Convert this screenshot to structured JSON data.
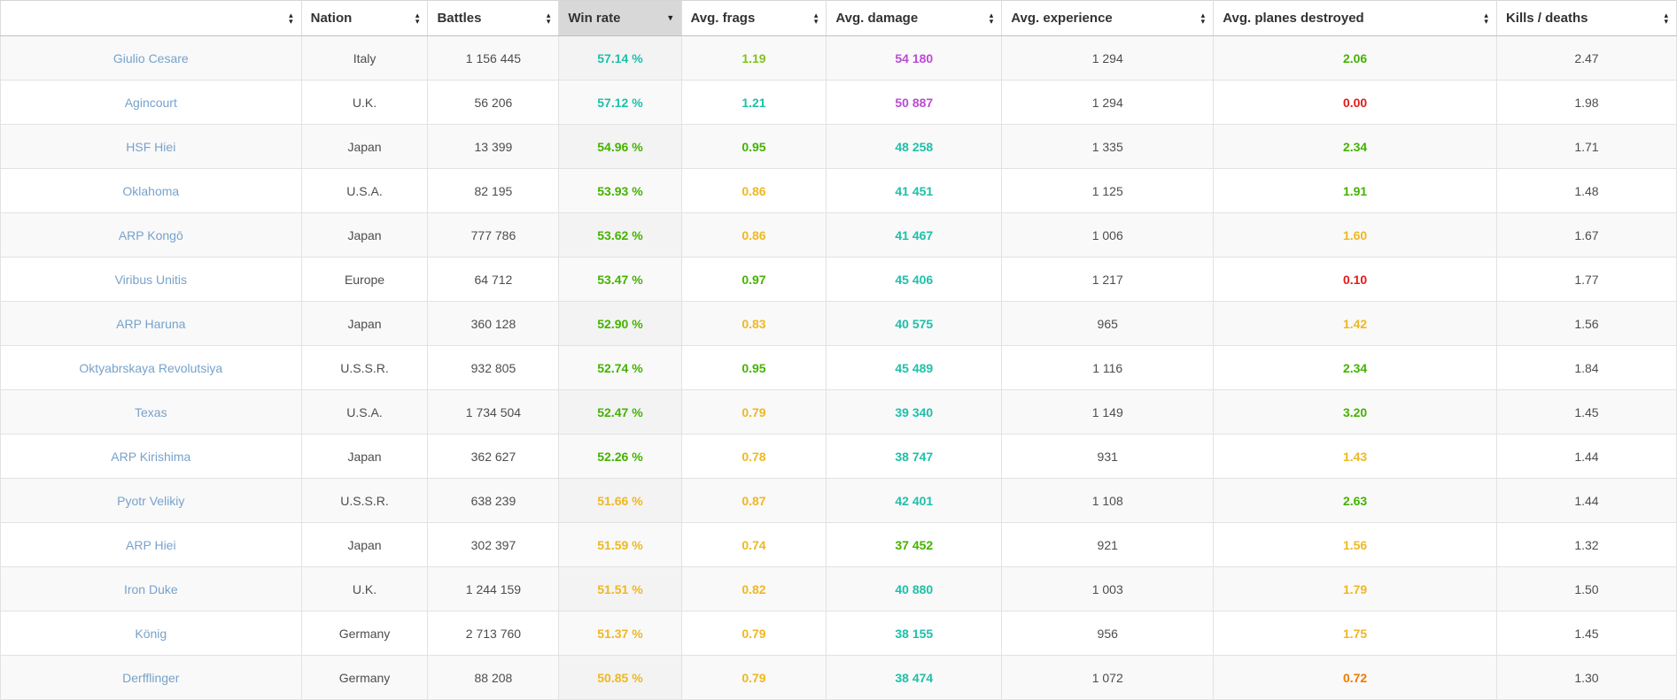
{
  "table": {
    "columns": [
      {
        "label": "",
        "sort": "both"
      },
      {
        "label": "Nation",
        "sort": "both"
      },
      {
        "label": "Battles",
        "sort": "both"
      },
      {
        "label": "Win rate",
        "sort": "desc"
      },
      {
        "label": "Avg. frags",
        "sort": "both"
      },
      {
        "label": "Avg. damage",
        "sort": "both"
      },
      {
        "label": "Avg. experience",
        "sort": "both"
      },
      {
        "label": "Avg. planes destroyed",
        "sort": "both"
      },
      {
        "label": "Kills / deaths",
        "sort": "both"
      }
    ],
    "colors": {
      "cyan": "#1fc0a8",
      "lime": "#7fc41c",
      "green": "#44b300",
      "yellow": "#eeb822",
      "orange": "#ee7b00",
      "red": "#e21a1a",
      "purple": "#bb4bd3",
      "link": "#77a2cb",
      "plain": "#4d4d4d"
    },
    "rows": [
      {
        "name": "Giulio Cesare",
        "nation": "Italy",
        "battles": "1 156 445",
        "win_rate": "57.14 %",
        "win_rate_color": "cyan",
        "avg_frags": "1.19",
        "avg_frags_color": "lime",
        "avg_damage": "54 180",
        "avg_damage_color": "purple",
        "avg_experience": "1 294",
        "avg_planes": "2.06",
        "avg_planes_color": "green",
        "kills_deaths": "2.47"
      },
      {
        "name": "Agincourt",
        "nation": "U.K.",
        "battles": "56 206",
        "win_rate": "57.12 %",
        "win_rate_color": "cyan",
        "avg_frags": "1.21",
        "avg_frags_color": "cyan",
        "avg_damage": "50 887",
        "avg_damage_color": "purple",
        "avg_experience": "1 294",
        "avg_planes": "0.00",
        "avg_planes_color": "red",
        "kills_deaths": "1.98"
      },
      {
        "name": "HSF Hiei",
        "nation": "Japan",
        "battles": "13 399",
        "win_rate": "54.96 %",
        "win_rate_color": "green",
        "avg_frags": "0.95",
        "avg_frags_color": "green",
        "avg_damage": "48 258",
        "avg_damage_color": "cyan",
        "avg_experience": "1 335",
        "avg_planes": "2.34",
        "avg_planes_color": "green",
        "kills_deaths": "1.71"
      },
      {
        "name": "Oklahoma",
        "nation": "U.S.A.",
        "battles": "82 195",
        "win_rate": "53.93 %",
        "win_rate_color": "green",
        "avg_frags": "0.86",
        "avg_frags_color": "yellow",
        "avg_damage": "41 451",
        "avg_damage_color": "cyan",
        "avg_experience": "1 125",
        "avg_planes": "1.91",
        "avg_planes_color": "green",
        "kills_deaths": "1.48"
      },
      {
        "name": "ARP Kongō",
        "nation": "Japan",
        "battles": "777 786",
        "win_rate": "53.62 %",
        "win_rate_color": "green",
        "avg_frags": "0.86",
        "avg_frags_color": "yellow",
        "avg_damage": "41 467",
        "avg_damage_color": "cyan",
        "avg_experience": "1 006",
        "avg_planes": "1.60",
        "avg_planes_color": "yellow",
        "kills_deaths": "1.67"
      },
      {
        "name": "Viribus Unitis",
        "nation": "Europe",
        "battles": "64 712",
        "win_rate": "53.47 %",
        "win_rate_color": "green",
        "avg_frags": "0.97",
        "avg_frags_color": "green",
        "avg_damage": "45 406",
        "avg_damage_color": "cyan",
        "avg_experience": "1 217",
        "avg_planes": "0.10",
        "avg_planes_color": "red",
        "kills_deaths": "1.77"
      },
      {
        "name": "ARP Haruna",
        "nation": "Japan",
        "battles": "360 128",
        "win_rate": "52.90 %",
        "win_rate_color": "green",
        "avg_frags": "0.83",
        "avg_frags_color": "yellow",
        "avg_damage": "40 575",
        "avg_damage_color": "cyan",
        "avg_experience": "965",
        "avg_planes": "1.42",
        "avg_planes_color": "yellow",
        "kills_deaths": "1.56"
      },
      {
        "name": "Oktyabrskaya Revolutsiya",
        "nation": "U.S.S.R.",
        "battles": "932 805",
        "win_rate": "52.74 %",
        "win_rate_color": "green",
        "avg_frags": "0.95",
        "avg_frags_color": "green",
        "avg_damage": "45 489",
        "avg_damage_color": "cyan",
        "avg_experience": "1 116",
        "avg_planes": "2.34",
        "avg_planes_color": "green",
        "kills_deaths": "1.84"
      },
      {
        "name": "Texas",
        "nation": "U.S.A.",
        "battles": "1 734 504",
        "win_rate": "52.47 %",
        "win_rate_color": "green",
        "avg_frags": "0.79",
        "avg_frags_color": "yellow",
        "avg_damage": "39 340",
        "avg_damage_color": "cyan",
        "avg_experience": "1 149",
        "avg_planes": "3.20",
        "avg_planes_color": "green",
        "kills_deaths": "1.45"
      },
      {
        "name": "ARP Kirishima",
        "nation": "Japan",
        "battles": "362 627",
        "win_rate": "52.26 %",
        "win_rate_color": "green",
        "avg_frags": "0.78",
        "avg_frags_color": "yellow",
        "avg_damage": "38 747",
        "avg_damage_color": "cyan",
        "avg_experience": "931",
        "avg_planes": "1.43",
        "avg_planes_color": "yellow",
        "kills_deaths": "1.44"
      },
      {
        "name": "Pyotr Velikiy",
        "nation": "U.S.S.R.",
        "battles": "638 239",
        "win_rate": "51.66 %",
        "win_rate_color": "yellow",
        "avg_frags": "0.87",
        "avg_frags_color": "yellow",
        "avg_damage": "42 401",
        "avg_damage_color": "cyan",
        "avg_experience": "1 108",
        "avg_planes": "2.63",
        "avg_planes_color": "green",
        "kills_deaths": "1.44"
      },
      {
        "name": "ARP Hiei",
        "nation": "Japan",
        "battles": "302 397",
        "win_rate": "51.59 %",
        "win_rate_color": "yellow",
        "avg_frags": "0.74",
        "avg_frags_color": "yellow",
        "avg_damage": "37 452",
        "avg_damage_color": "green",
        "avg_experience": "921",
        "avg_planes": "1.56",
        "avg_planes_color": "yellow",
        "kills_deaths": "1.32"
      },
      {
        "name": "Iron Duke",
        "nation": "U.K.",
        "battles": "1 244 159",
        "win_rate": "51.51 %",
        "win_rate_color": "yellow",
        "avg_frags": "0.82",
        "avg_frags_color": "yellow",
        "avg_damage": "40 880",
        "avg_damage_color": "cyan",
        "avg_experience": "1 003",
        "avg_planes": "1.79",
        "avg_planes_color": "yellow",
        "kills_deaths": "1.50"
      },
      {
        "name": "König",
        "nation": "Germany",
        "battles": "2 713 760",
        "win_rate": "51.37 %",
        "win_rate_color": "yellow",
        "avg_frags": "0.79",
        "avg_frags_color": "yellow",
        "avg_damage": "38 155",
        "avg_damage_color": "cyan",
        "avg_experience": "956",
        "avg_planes": "1.75",
        "avg_planes_color": "yellow",
        "kills_deaths": "1.45"
      },
      {
        "name": "Derfflinger",
        "nation": "Germany",
        "battles": "88 208",
        "win_rate": "50.85 %",
        "win_rate_color": "yellow",
        "avg_frags": "0.79",
        "avg_frags_color": "yellow",
        "avg_damage": "38 474",
        "avg_damage_color": "cyan",
        "avg_experience": "1 072",
        "avg_planes": "0.72",
        "avg_planes_color": "orange",
        "kills_deaths": "1.30"
      }
    ]
  }
}
